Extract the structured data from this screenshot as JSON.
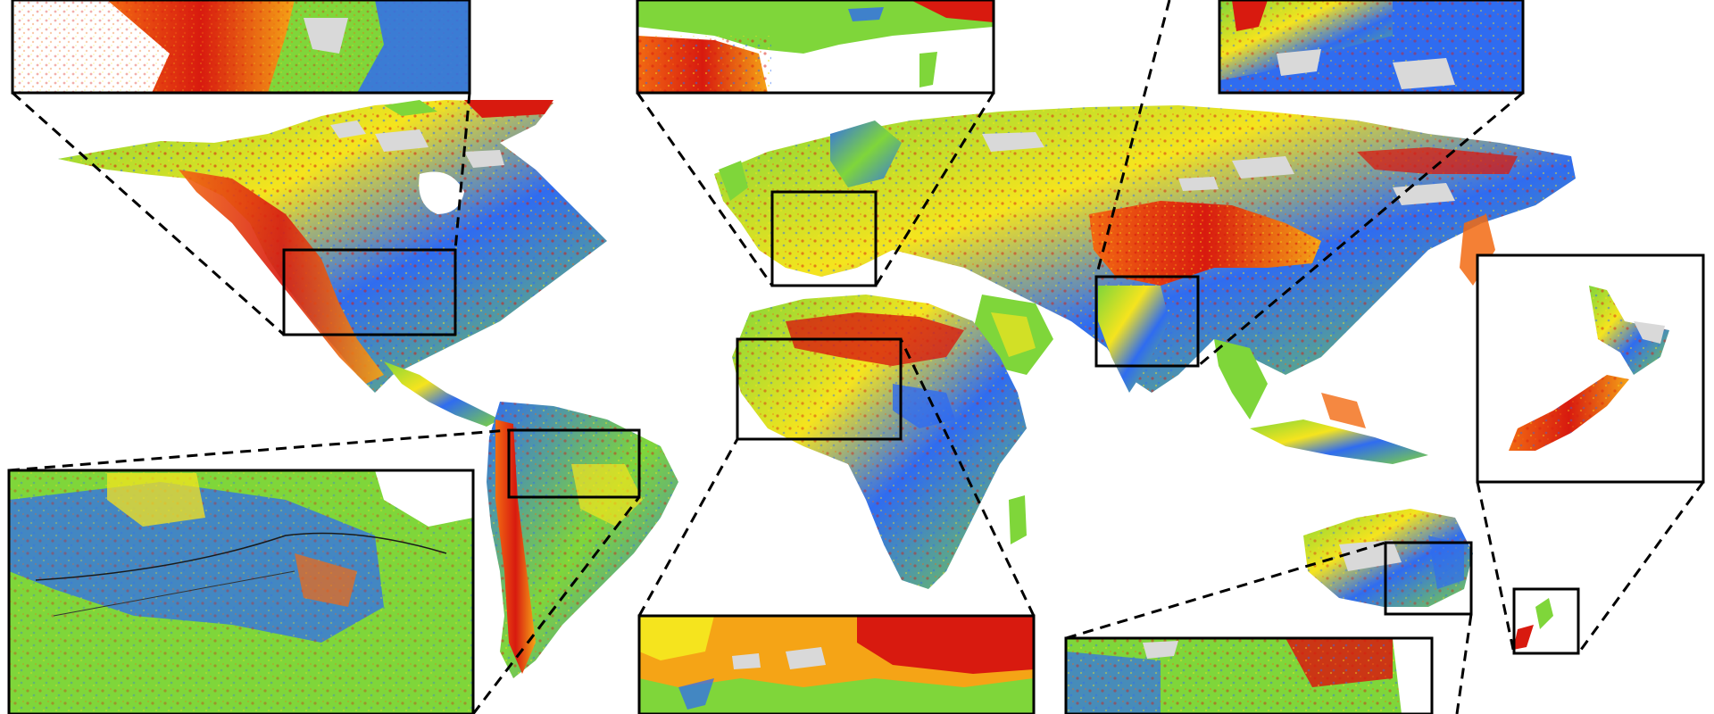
{
  "figure": {
    "description_visible_text": "",
    "palette": {
      "high": "#d81a0f",
      "upper": "#f26a12",
      "mid": "#f5e41e",
      "low_mid": "#7fd63a",
      "low": "#2f6cf0",
      "no_data": "#d9d9d9",
      "frame": "#000000"
    },
    "regions_zoomed": [
      "western-north-america",
      "western-europe",
      "himalaya-tibet",
      "amazon-basin",
      "sahara-sahel",
      "eastern-australia",
      "new-zealand"
    ]
  }
}
